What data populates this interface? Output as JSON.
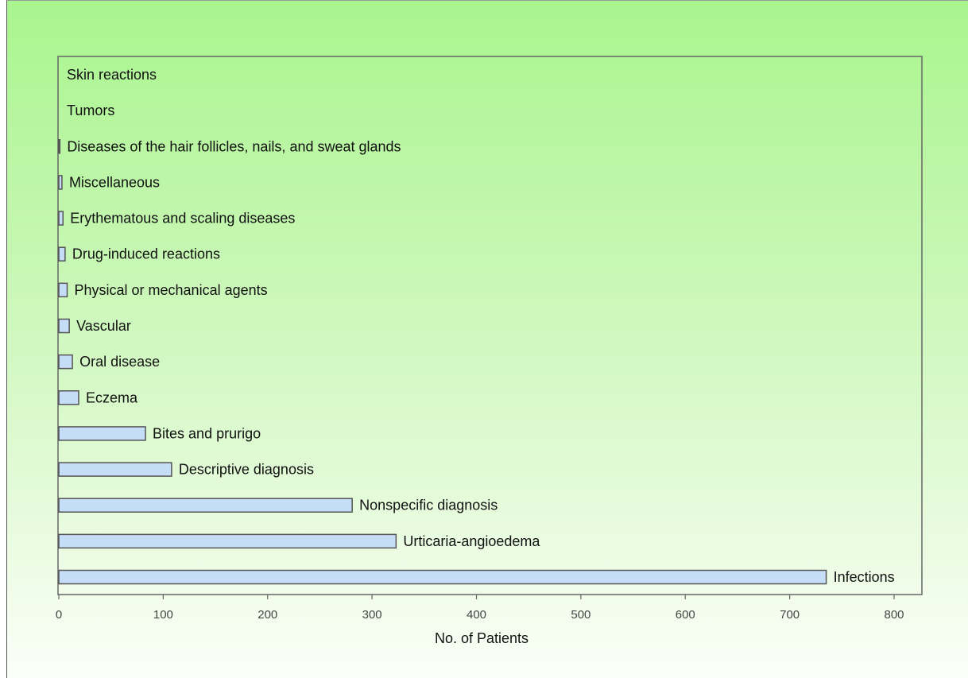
{
  "chart_data": {
    "type": "bar",
    "orientation": "horizontal",
    "categories": [
      "Skin reactions",
      "Tumors",
      "Diseases of the hair follicles, nails, and sweat glands",
      "Miscellaneous",
      "Erythematous and scaling diseases",
      "Drug-induced reactions",
      "Physical or mechanical agents",
      "Vascular",
      "Oral disease",
      "Eczema",
      "Bites and prurigo",
      "Descriptive diagnosis",
      "Nonspecific diagnosis",
      "Urticaria-angioedema",
      "Infections"
    ],
    "values": [
      0,
      0,
      1,
      3,
      4,
      6,
      8,
      10,
      13,
      19,
      83,
      108,
      281,
      323,
      735
    ],
    "xlabel": "No. of Patients",
    "xlim": [
      0,
      800
    ],
    "xticks": [
      0,
      100,
      200,
      300,
      400,
      500,
      600,
      700,
      800
    ],
    "bar_fill": "#c6ddf7",
    "bar_stroke": "#555555",
    "grid": false
  }
}
